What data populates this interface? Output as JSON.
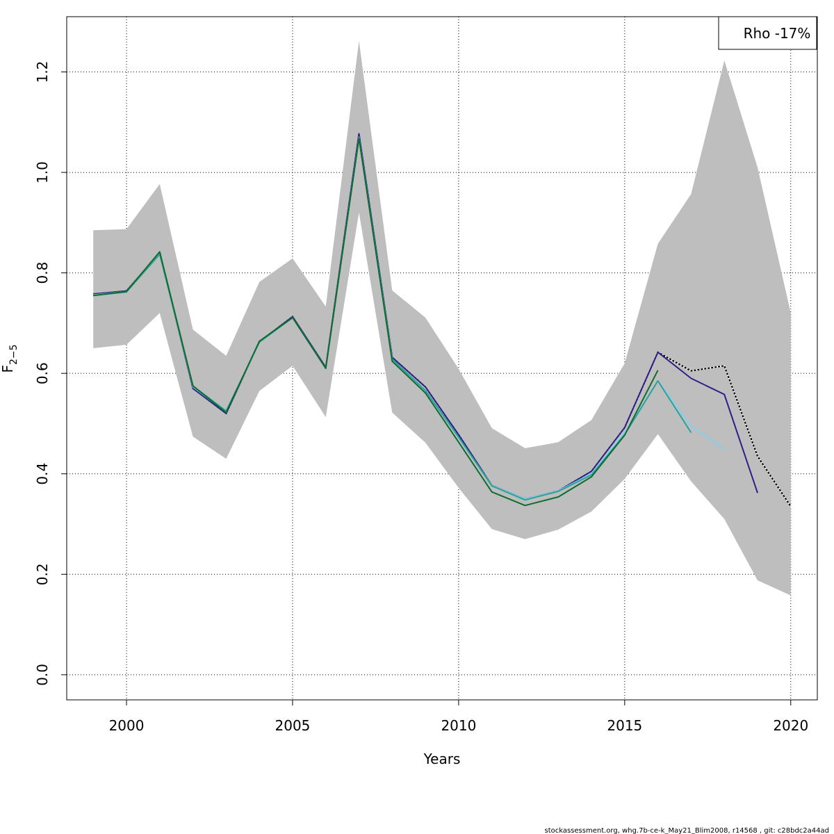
{
  "chart_data": {
    "type": "line",
    "title": "",
    "xlabel": "Years",
    "ylabel_main": "F",
    "ylabel_sub": "2−5",
    "xlim": [
      1998.2,
      2020.8
    ],
    "ylim": [
      -0.05,
      1.31
    ],
    "xticks": [
      "2000",
      "2005",
      "2010",
      "2015",
      "2020"
    ],
    "yticks": [
      "0.0",
      "0.2",
      "0.4",
      "0.6",
      "0.8",
      "1.0",
      "1.2"
    ],
    "grid": true,
    "legend": {
      "position": "top-right",
      "text": "Rho -17%"
    },
    "footer": "stockassessment.org, whg.7b-ce-k_May21_Blim2008, r14568 , git: c28bdc2a44ad",
    "confidence_band": {
      "x": [
        1999,
        2000,
        2001,
        2002,
        2003,
        2004,
        2005,
        2006,
        2007,
        2008,
        2009,
        2010,
        2011,
        2012,
        2013,
        2014,
        2015,
        2016,
        2017,
        2018,
        2019,
        2020
      ],
      "upper": [
        0.885,
        0.887,
        0.977,
        0.687,
        0.635,
        0.782,
        0.829,
        0.733,
        1.262,
        0.765,
        0.711,
        0.609,
        0.491,
        0.451,
        0.463,
        0.507,
        0.62,
        0.858,
        0.957,
        1.223,
        1.01,
        0.72
      ],
      "lower": [
        0.65,
        0.657,
        0.72,
        0.474,
        0.43,
        0.565,
        0.615,
        0.513,
        0.92,
        0.522,
        0.462,
        0.372,
        0.29,
        0.27,
        0.289,
        0.325,
        0.39,
        0.479,
        0.385,
        0.31,
        0.188,
        0.158
      ],
      "color": "#bebebe"
    },
    "series": [
      {
        "color": "#000000",
        "dashed": true,
        "x": [
          1999,
          2000,
          2001,
          2002,
          2003,
          2004,
          2005,
          2006,
          2007,
          2008,
          2009,
          2010,
          2011,
          2012,
          2013,
          2014,
          2015,
          2016,
          2017,
          2018,
          2019,
          2020
        ],
        "values": [
          0.758,
          0.764,
          0.84,
          0.57,
          0.52,
          0.663,
          0.713,
          0.612,
          1.077,
          0.632,
          0.573,
          0.478,
          0.377,
          0.35,
          0.366,
          0.405,
          0.492,
          0.642,
          0.605,
          0.615,
          0.435,
          0.335
        ]
      },
      {
        "color": "#2e1f87",
        "dashed": false,
        "x": [
          1999,
          2000,
          2001,
          2002,
          2003,
          2004,
          2005,
          2006,
          2007,
          2008,
          2009,
          2010,
          2011,
          2012,
          2013,
          2014,
          2015,
          2016,
          2017,
          2018,
          2019
        ],
        "values": [
          0.758,
          0.764,
          0.84,
          0.57,
          0.52,
          0.663,
          0.713,
          0.612,
          1.077,
          0.632,
          0.573,
          0.478,
          0.377,
          0.35,
          0.366,
          0.405,
          0.492,
          0.642,
          0.59,
          0.558,
          0.362
        ]
      },
      {
        "color": "#87ceeb",
        "dashed": false,
        "x": [
          1999,
          2000,
          2001,
          2002,
          2003,
          2004,
          2005,
          2006,
          2007,
          2008,
          2009,
          2010,
          2011,
          2012,
          2013,
          2014,
          2015,
          2016,
          2017,
          2018
        ],
        "values": [
          0.756,
          0.763,
          0.838,
          0.573,
          0.523,
          0.662,
          0.711,
          0.61,
          1.07,
          0.628,
          0.565,
          0.472,
          0.377,
          0.35,
          0.366,
          0.4,
          0.482,
          0.585,
          0.495,
          0.449
        ]
      },
      {
        "color": "#2aa198",
        "dashed": false,
        "x": [
          1999,
          2000,
          2001,
          2002,
          2003,
          2004,
          2005,
          2006,
          2007,
          2008,
          2009,
          2010,
          2011,
          2012,
          2013,
          2014,
          2015,
          2016,
          2017
        ],
        "values": [
          0.755,
          0.762,
          0.837,
          0.575,
          0.525,
          0.662,
          0.711,
          0.61,
          1.068,
          0.628,
          0.566,
          0.473,
          0.376,
          0.348,
          0.365,
          0.398,
          0.478,
          0.585,
          0.482
        ]
      },
      {
        "color": "#0f6b2e",
        "dashed": false,
        "x": [
          1999,
          2000,
          2001,
          2002,
          2003,
          2004,
          2005,
          2006,
          2007,
          2008,
          2009,
          2010,
          2011,
          2012,
          2013,
          2014,
          2015,
          2016
        ],
        "values": [
          0.755,
          0.763,
          0.842,
          0.575,
          0.522,
          0.664,
          0.711,
          0.61,
          1.068,
          0.624,
          0.561,
          0.463,
          0.364,
          0.337,
          0.354,
          0.394,
          0.477,
          0.606
        ]
      }
    ]
  }
}
